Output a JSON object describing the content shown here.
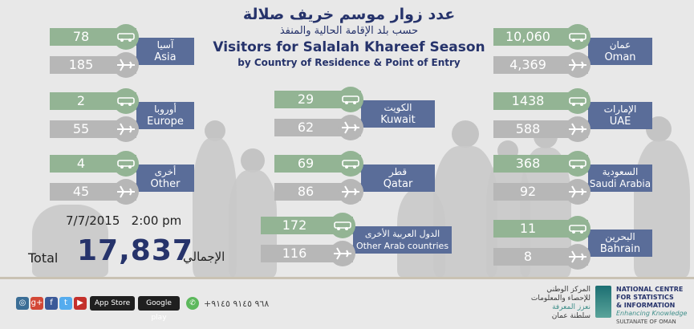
{
  "title": {
    "arabic_main": "عدد زوار موسم خريف صلالة",
    "arabic_sub": "حسب بلد الإقامة الحالية والمنفذ",
    "english_main": "Visitors for Salalah Khareef Season",
    "english_sub": "by Country of Residence & Point of Entry"
  },
  "groups": {
    "asia": {
      "ar": "آسيا",
      "en": "Asia",
      "land": "78",
      "air": "185"
    },
    "europe": {
      "ar": "أوروبا",
      "en": "Europe",
      "land": "2",
      "air": "55"
    },
    "other": {
      "ar": "أخرى",
      "en": "Other",
      "land": "4",
      "air": "45"
    },
    "kuwait": {
      "ar": "الكويت",
      "en": "Kuwait",
      "land": "29",
      "air": "62"
    },
    "qatar": {
      "ar": "قطر",
      "en": "Qatar",
      "land": "69",
      "air": "86"
    },
    "other_arab": {
      "ar": "الدول العربية الأخرى",
      "en": "Other Arab countries",
      "land": "172",
      "air": "116"
    },
    "oman": {
      "ar": "عمان",
      "en": "Oman",
      "land": "10,060",
      "air": "4,369"
    },
    "uae": {
      "ar": "الإمارات",
      "en": "UAE",
      "land": "1438",
      "air": "588"
    },
    "saudi": {
      "ar": "السعودية",
      "en": "Saudi Arabia",
      "land": "368",
      "air": "92"
    },
    "bahrain": {
      "ar": "البحرين",
      "en": "Bahrain",
      "land": "11",
      "air": "8"
    }
  },
  "summary": {
    "datetime": "7/7/2015   2:00 pm",
    "total_en": "Total",
    "total_value": "17,837",
    "total_ar": "الإجمالي"
  },
  "footer": {
    "phone": "+٩٦٨ ٩١٤٥ ٩١٤٥",
    "app_store": "App Store",
    "google_play": "Google play",
    "logo_ar_line1": "المركز الوطني",
    "logo_ar_line2": "للإحصاء والمعلومات",
    "logo_ar_tag": "نعزز المعرفة",
    "logo_ar_sult": "سلطنة عمان",
    "logo_en_line1": "NATIONAL CENTRE",
    "logo_en_line2": "FOR STATISTICS",
    "logo_en_line3": "& INFORMATION",
    "logo_en_tag": "Enhancing Knowledge",
    "logo_en_sult": "SULTANATE OF OMAN"
  },
  "colors": {
    "land": "#93b494",
    "air": "#b7b7b7",
    "label": "#5a6d99",
    "title": "#26336b"
  }
}
